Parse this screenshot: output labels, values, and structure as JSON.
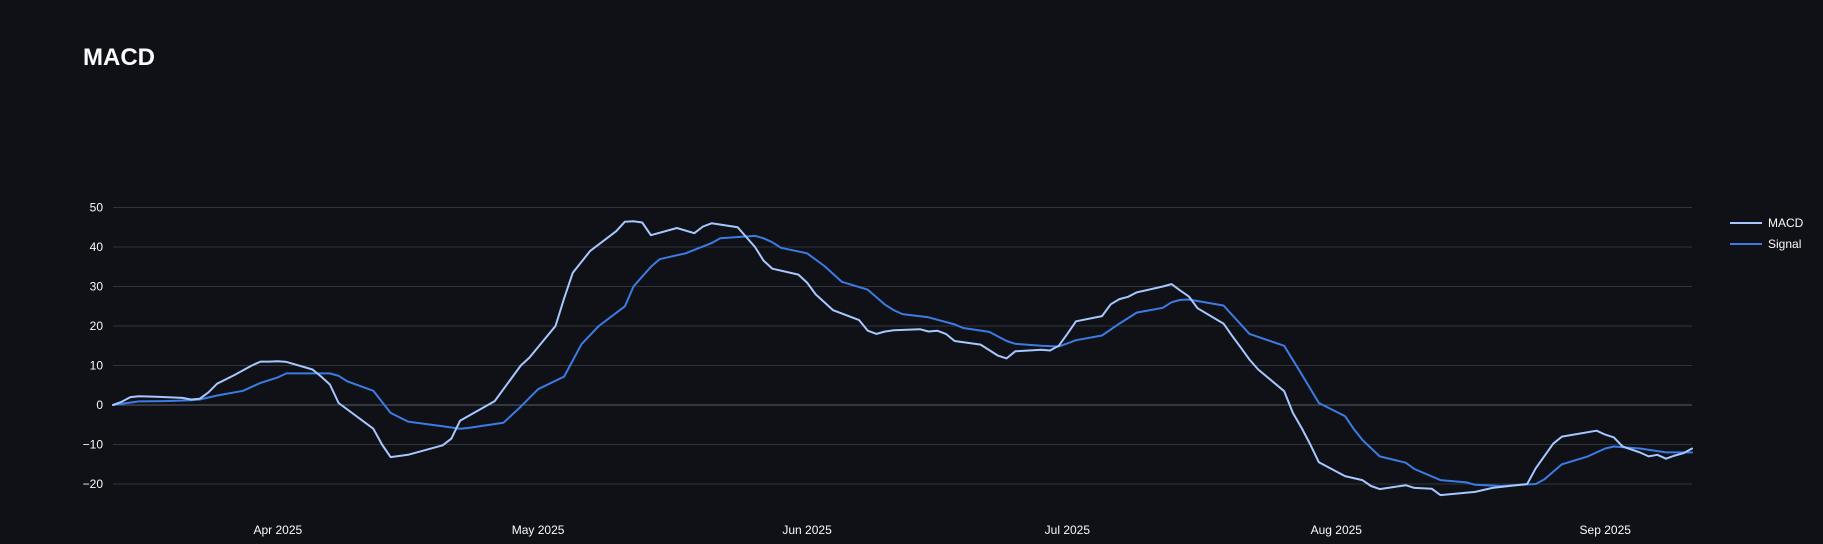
{
  "chart_data": {
    "type": "line",
    "title": "MACD",
    "xlabel": "",
    "ylabel": "",
    "x_range": [
      "2025-03-13",
      "2025-09-11"
    ],
    "ylim": [
      -24,
      52
    ],
    "y_ticks": [
      50,
      40,
      30,
      20,
      10,
      0,
      -10,
      -20
    ],
    "x_ticks": [
      {
        "date": "2025-04-01",
        "label": "Apr 2025"
      },
      {
        "date": "2025-05-01",
        "label": "May 2025"
      },
      {
        "date": "2025-06-01",
        "label": "Jun 2025"
      },
      {
        "date": "2025-07-01",
        "label": "Jul 2025"
      },
      {
        "date": "2025-08-01",
        "label": "Aug 2025"
      },
      {
        "date": "2025-09-01",
        "label": "Sep 2025"
      }
    ],
    "grid": true,
    "legend_position": "top-right",
    "series": [
      {
        "name": "MACD",
        "color": "#a6c8ff",
        "points": [
          [
            "2025-03-13",
            0.0
          ],
          [
            "2025-03-14",
            0.8
          ],
          [
            "2025-03-15",
            2.0
          ],
          [
            "2025-03-16",
            2.2
          ],
          [
            "2025-03-18",
            2.1
          ],
          [
            "2025-03-21",
            1.8
          ],
          [
            "2025-03-22",
            1.4
          ],
          [
            "2025-03-23",
            1.6
          ],
          [
            "2025-03-24",
            3.2
          ],
          [
            "2025-03-25",
            5.4
          ],
          [
            "2025-03-27",
            7.6
          ],
          [
            "2025-03-29",
            10.0
          ],
          [
            "2025-03-30",
            11.0
          ],
          [
            "2025-03-31",
            11.0
          ],
          [
            "2025-04-01",
            11.1
          ],
          [
            "2025-04-02",
            10.9
          ],
          [
            "2025-04-05",
            9.0
          ],
          [
            "2025-04-06",
            7.2
          ],
          [
            "2025-04-07",
            5.2
          ],
          [
            "2025-04-08",
            0.5
          ],
          [
            "2025-04-12",
            -6.0
          ],
          [
            "2025-04-13",
            -10.0
          ],
          [
            "2025-04-14",
            -13.2
          ],
          [
            "2025-04-16",
            -12.6
          ],
          [
            "2025-04-20",
            -10.2
          ],
          [
            "2025-04-21",
            -8.5
          ],
          [
            "2025-04-22",
            -4.0
          ],
          [
            "2025-04-26",
            1.0
          ],
          [
            "2025-04-28",
            7.0
          ],
          [
            "2025-04-29",
            10.0
          ],
          [
            "2025-04-30",
            12.0
          ],
          [
            "2025-05-03",
            20.0
          ],
          [
            "2025-05-04",
            27.0
          ],
          [
            "2025-05-05",
            33.5
          ],
          [
            "2025-05-07",
            39.0
          ],
          [
            "2025-05-10",
            44.0
          ],
          [
            "2025-05-11",
            46.4
          ],
          [
            "2025-05-12",
            46.5
          ],
          [
            "2025-05-13",
            46.2
          ],
          [
            "2025-05-14",
            43.0
          ],
          [
            "2025-05-17",
            44.8
          ],
          [
            "2025-05-19",
            43.5
          ],
          [
            "2025-05-20",
            45.2
          ],
          [
            "2025-05-21",
            46.0
          ],
          [
            "2025-05-24",
            45.0
          ],
          [
            "2025-05-26",
            40.0
          ],
          [
            "2025-05-27",
            36.5
          ],
          [
            "2025-05-28",
            34.5
          ],
          [
            "2025-05-31",
            33.0
          ],
          [
            "2025-06-01",
            31.0
          ],
          [
            "2025-06-02",
            28.0
          ],
          [
            "2025-06-03",
            26.0
          ],
          [
            "2025-06-04",
            24.0
          ],
          [
            "2025-06-07",
            21.5
          ],
          [
            "2025-06-08",
            18.8
          ],
          [
            "2025-06-09",
            18.0
          ],
          [
            "2025-06-10",
            18.6
          ],
          [
            "2025-06-11",
            18.9
          ],
          [
            "2025-06-14",
            19.2
          ],
          [
            "2025-06-15",
            18.6
          ],
          [
            "2025-06-16",
            18.8
          ],
          [
            "2025-06-17",
            18.0
          ],
          [
            "2025-06-18",
            16.2
          ],
          [
            "2025-06-21",
            15.3
          ],
          [
            "2025-06-23",
            12.5
          ],
          [
            "2025-06-24",
            11.8
          ],
          [
            "2025-06-25",
            13.6
          ],
          [
            "2025-06-28",
            14.0
          ],
          [
            "2025-06-29",
            13.8
          ],
          [
            "2025-06-30",
            15.0
          ],
          [
            "2025-07-01",
            18.0
          ],
          [
            "2025-07-02",
            21.2
          ],
          [
            "2025-07-05",
            22.5
          ],
          [
            "2025-07-06",
            25.5
          ],
          [
            "2025-07-07",
            26.8
          ],
          [
            "2025-07-08",
            27.4
          ],
          [
            "2025-07-09",
            28.5
          ],
          [
            "2025-07-12",
            30.0
          ],
          [
            "2025-07-13",
            30.6
          ],
          [
            "2025-07-14",
            29.0
          ],
          [
            "2025-07-15",
            27.5
          ],
          [
            "2025-07-16",
            24.5
          ],
          [
            "2025-07-19",
            20.6
          ],
          [
            "2025-07-20",
            17.5
          ],
          [
            "2025-07-21",
            14.5
          ],
          [
            "2025-07-22",
            11.5
          ],
          [
            "2025-07-23",
            9.0
          ],
          [
            "2025-07-26",
            3.5
          ],
          [
            "2025-07-27",
            -2.0
          ],
          [
            "2025-07-28",
            -5.8
          ],
          [
            "2025-07-29",
            -10.0
          ],
          [
            "2025-07-30",
            -14.5
          ],
          [
            "2025-08-02",
            -18.0
          ],
          [
            "2025-08-04",
            -19.0
          ],
          [
            "2025-08-05",
            -20.5
          ],
          [
            "2025-08-06",
            -21.3
          ],
          [
            "2025-08-09",
            -20.3
          ],
          [
            "2025-08-10",
            -21.0
          ],
          [
            "2025-08-12",
            -21.2
          ],
          [
            "2025-08-13",
            -22.8
          ],
          [
            "2025-08-17",
            -22.0
          ],
          [
            "2025-08-19",
            -21.0
          ],
          [
            "2025-08-23",
            -20.0
          ],
          [
            "2025-08-24",
            -16.0
          ],
          [
            "2025-08-26",
            -9.8
          ],
          [
            "2025-08-27",
            -8.0
          ],
          [
            "2025-08-31",
            -6.5
          ],
          [
            "2025-09-01",
            -7.5
          ],
          [
            "2025-09-02",
            -8.2
          ],
          [
            "2025-09-03",
            -10.5
          ],
          [
            "2025-09-05",
            -12.0
          ],
          [
            "2025-09-06",
            -13.0
          ],
          [
            "2025-09-07",
            -12.6
          ],
          [
            "2025-09-08",
            -13.6
          ],
          [
            "2025-09-09",
            -12.8
          ],
          [
            "2025-09-10",
            -12.2
          ],
          [
            "2025-09-11",
            -11.0
          ]
        ]
      },
      {
        "name": "Signal",
        "color": "#3d7be4",
        "points": [
          [
            "2025-03-13",
            0.0
          ],
          [
            "2025-03-16",
            0.9
          ],
          [
            "2025-03-19",
            1.0
          ],
          [
            "2025-03-22",
            1.2
          ],
          [
            "2025-03-23",
            1.4
          ],
          [
            "2025-03-25",
            2.4
          ],
          [
            "2025-03-28",
            3.6
          ],
          [
            "2025-03-30",
            5.6
          ],
          [
            "2025-04-01",
            7.0
          ],
          [
            "2025-04-02",
            8.0
          ],
          [
            "2025-04-07",
            8.0
          ],
          [
            "2025-04-08",
            7.4
          ],
          [
            "2025-04-09",
            6.0
          ],
          [
            "2025-04-12",
            3.6
          ],
          [
            "2025-04-14",
            -2.0
          ],
          [
            "2025-04-16",
            -4.2
          ],
          [
            "2025-04-20",
            -5.4
          ],
          [
            "2025-04-22",
            -6.0
          ],
          [
            "2025-04-23",
            -5.8
          ],
          [
            "2025-04-27",
            -4.5
          ],
          [
            "2025-04-29",
            -0.4
          ],
          [
            "2025-05-01",
            4.0
          ],
          [
            "2025-05-04",
            7.2
          ],
          [
            "2025-05-06",
            15.4
          ],
          [
            "2025-05-08",
            20.0
          ],
          [
            "2025-05-11",
            25.0
          ],
          [
            "2025-05-12",
            30.0
          ],
          [
            "2025-05-14",
            35.0
          ],
          [
            "2025-05-15",
            36.9
          ],
          [
            "2025-05-18",
            38.4
          ],
          [
            "2025-05-21",
            41.0
          ],
          [
            "2025-05-22",
            42.2
          ],
          [
            "2025-05-26",
            42.8
          ],
          [
            "2025-05-27",
            42.2
          ],
          [
            "2025-05-28",
            41.2
          ],
          [
            "2025-05-29",
            39.8
          ],
          [
            "2025-06-01",
            38.4
          ],
          [
            "2025-06-03",
            35.2
          ],
          [
            "2025-06-05",
            31.2
          ],
          [
            "2025-06-08",
            29.2
          ],
          [
            "2025-06-10",
            25.4
          ],
          [
            "2025-06-11",
            24.0
          ],
          [
            "2025-06-12",
            23.0
          ],
          [
            "2025-06-15",
            22.2
          ],
          [
            "2025-06-16",
            21.6
          ],
          [
            "2025-06-18",
            20.4
          ],
          [
            "2025-06-19",
            19.5
          ],
          [
            "2025-06-22",
            18.5
          ],
          [
            "2025-06-24",
            16.2
          ],
          [
            "2025-06-25",
            15.5
          ],
          [
            "2025-06-28",
            15.0
          ],
          [
            "2025-06-30",
            14.8
          ],
          [
            "2025-07-01",
            15.6
          ],
          [
            "2025-07-02",
            16.4
          ],
          [
            "2025-07-05",
            17.6
          ],
          [
            "2025-07-07",
            20.6
          ],
          [
            "2025-07-09",
            23.4
          ],
          [
            "2025-07-12",
            24.6
          ],
          [
            "2025-07-13",
            26.0
          ],
          [
            "2025-07-14",
            26.6
          ],
          [
            "2025-07-15",
            26.7
          ],
          [
            "2025-07-19",
            25.2
          ],
          [
            "2025-07-22",
            18.0
          ],
          [
            "2025-07-26",
            15.0
          ],
          [
            "2025-07-28",
            7.8
          ],
          [
            "2025-07-30",
            0.5
          ],
          [
            "2025-08-02",
            -2.8
          ],
          [
            "2025-08-03",
            -6.0
          ],
          [
            "2025-08-04",
            -8.8
          ],
          [
            "2025-08-06",
            -13.0
          ],
          [
            "2025-08-09",
            -14.6
          ],
          [
            "2025-08-10",
            -16.2
          ],
          [
            "2025-08-13",
            -19.0
          ],
          [
            "2025-08-16",
            -19.6
          ],
          [
            "2025-08-17",
            -20.2
          ],
          [
            "2025-08-20",
            -20.5
          ],
          [
            "2025-08-24",
            -20.0
          ],
          [
            "2025-08-25",
            -18.8
          ],
          [
            "2025-08-27",
            -15.0
          ],
          [
            "2025-08-30",
            -13.0
          ],
          [
            "2025-08-31",
            -12.0
          ],
          [
            "2025-09-01",
            -11.0
          ],
          [
            "2025-09-02",
            -10.5
          ],
          [
            "2025-09-05",
            -11.0
          ],
          [
            "2025-09-08",
            -12.0
          ],
          [
            "2025-09-11",
            -12.0
          ]
        ]
      }
    ]
  }
}
